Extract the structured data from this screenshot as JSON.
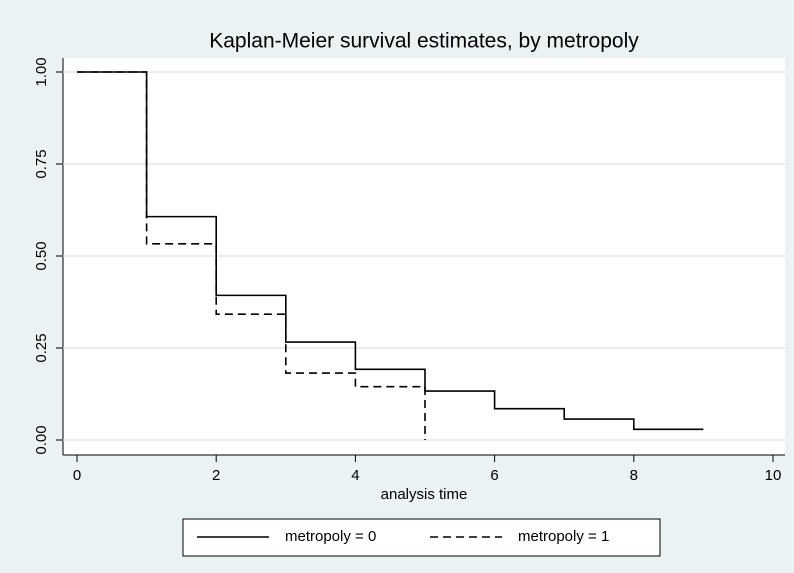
{
  "chart_data": {
    "type": "step",
    "title": "Kaplan-Meier survival estimates, by metropoly",
    "x_label": "analysis time",
    "xlim": [
      0,
      10
    ],
    "xticks": [
      0,
      2,
      4,
      6,
      8,
      10
    ],
    "ylim": [
      0,
      1
    ],
    "yticks": [
      {
        "value": 0,
        "label": "0.00"
      },
      0.25,
      {
        "value": 0.5,
        "label": "0.50"
      },
      0.75,
      {
        "value": 1,
        "label": "1.00"
      }
    ],
    "grid": true,
    "legend": "bottom",
    "series": [
      {
        "name": "metropoly = 0",
        "color": "#000000",
        "dash": "solid",
        "x": [
          0,
          1,
          2,
          3,
          4,
          5,
          6,
          7,
          8,
          9
        ],
        "values": [
          1,
          0.607,
          0.393,
          0.266,
          0.192,
          0.133,
          0.085,
          0.057,
          0.029,
          0.029
        ]
      },
      {
        "name": "metropoly = 1",
        "color": "#000000",
        "dash": "dashed",
        "x": [
          0,
          1,
          2,
          3,
          4,
          5
        ],
        "values": [
          1,
          0.533,
          0.342,
          0.182,
          0.145,
          0
        ]
      }
    ]
  }
}
